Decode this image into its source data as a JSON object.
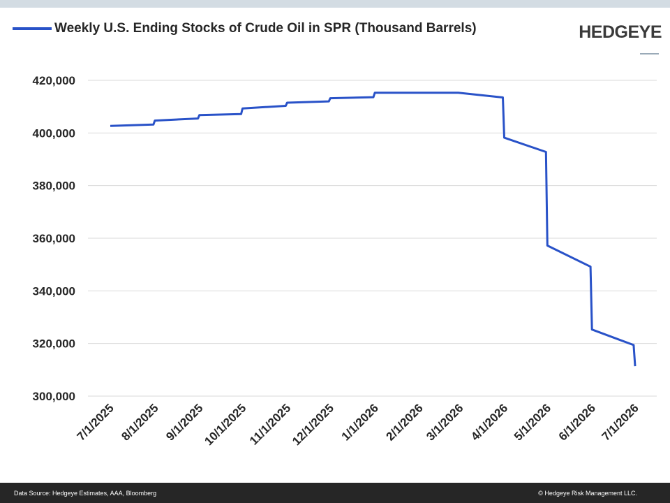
{
  "brand": {
    "logo_text": "HEDGEYE"
  },
  "footer": {
    "source": "Data Source: Hedgeye Estimates, AAA, Bloomberg",
    "copyright": "© Hedgeye Risk Management LLC."
  },
  "colors": {
    "series": "#2952c8",
    "grid": "#d9d9d9",
    "footer_bg": "#262626",
    "top_band": "#d3dce3"
  },
  "chart_data": {
    "type": "line",
    "title": "",
    "xlabel": "",
    "ylabel": "",
    "ylim": [
      300000,
      420000
    ],
    "yticks": [
      300000,
      320000,
      340000,
      360000,
      380000,
      400000,
      420000
    ],
    "ytick_labels": [
      "300,000",
      "320,000",
      "340,000",
      "360,000",
      "380,000",
      "400,000",
      "420,000"
    ],
    "xticks": [
      "7/1/2025",
      "8/1/2025",
      "9/1/2025",
      "10/1/2025",
      "11/1/2025",
      "12/1/2025",
      "1/1/2026",
      "2/1/2026",
      "3/1/2026",
      "4/1/2026",
      "5/1/2026",
      "6/1/2026",
      "7/1/2026"
    ],
    "grid": true,
    "legend": "top-left",
    "series": [
      {
        "name": "Weekly U.S. Ending Stocks of Crude Oil in SPR  (Thousand Barrels)",
        "x": [
          "2025-07-01",
          "2025-07-31",
          "2025-08-01",
          "2025-08-31",
          "2025-09-01",
          "2025-09-30",
          "2025-10-01",
          "2025-10-31",
          "2025-11-01",
          "2025-11-30",
          "2025-12-01",
          "2025-12-31",
          "2026-01-01",
          "2026-02-01",
          "2026-02-28",
          "2026-03-31",
          "2026-04-01",
          "2026-04-30",
          "2026-05-01",
          "2026-05-31",
          "2026-06-01",
          "2026-06-30",
          "2026-07-01"
        ],
        "values": [
          402700,
          403200,
          404700,
          405500,
          406800,
          407200,
          409300,
          410300,
          411500,
          412000,
          413200,
          413600,
          415300,
          415300,
          415300,
          413500,
          398200,
          392800,
          357200,
          349200,
          325300,
          319400,
          311400
        ]
      }
    ]
  }
}
